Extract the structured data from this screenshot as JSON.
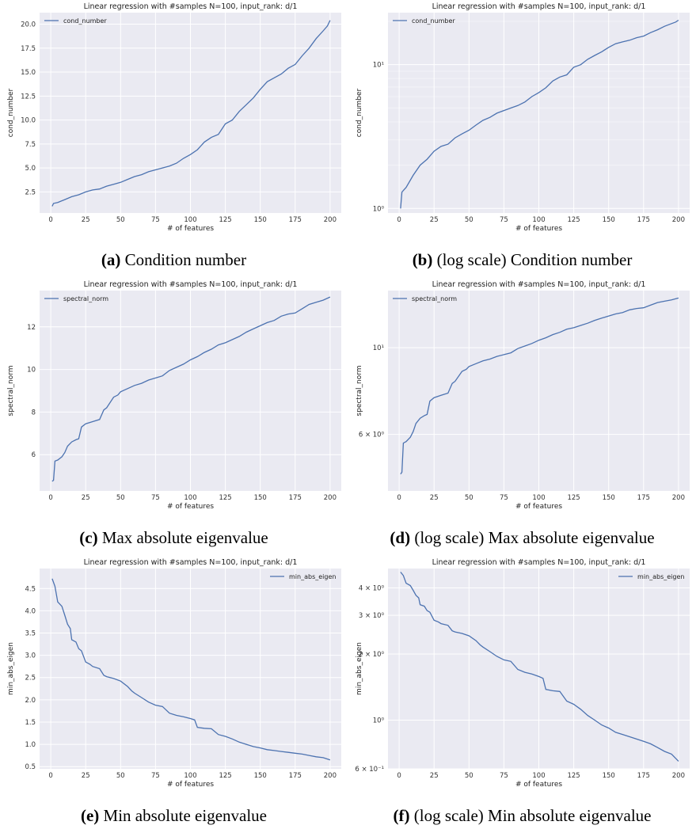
{
  "chart_data": [
    {
      "type": "line",
      "title": "Linear regression with #samples N=100, input_rank: d/1",
      "xlabel": "# of features",
      "ylabel": "cond_number",
      "scale": "linear",
      "xlim": [
        -8,
        208
      ],
      "ylim": [
        0.3,
        21.2
      ],
      "xticks": [
        "0",
        "25",
        "50",
        "75",
        "100",
        "125",
        "150",
        "175",
        "200"
      ],
      "yticks": [
        {
          "v": 2.5,
          "label": "2.5"
        },
        {
          "v": 5.0,
          "label": "5.0"
        },
        {
          "v": 7.5,
          "label": "7.5"
        },
        {
          "v": 10.0,
          "label": "10.0"
        },
        {
          "v": 12.5,
          "label": "12.5"
        },
        {
          "v": 15.0,
          "label": "15.0"
        },
        {
          "v": 17.5,
          "label": "17.5"
        },
        {
          "v": 20.0,
          "label": "20.0"
        }
      ],
      "legend": "top-left",
      "grid": true,
      "series": [
        {
          "name": "cond_number",
          "x": [
            1,
            2,
            5,
            10,
            15,
            20,
            25,
            30,
            35,
            40,
            45,
            50,
            55,
            60,
            65,
            70,
            75,
            80,
            85,
            90,
            95,
            100,
            105,
            110,
            115,
            120,
            125,
            130,
            135,
            140,
            145,
            150,
            155,
            160,
            165,
            170,
            175,
            180,
            185,
            190,
            195,
            198,
            200
          ],
          "y": [
            1.0,
            1.3,
            1.4,
            1.7,
            2.0,
            2.2,
            2.5,
            2.7,
            2.8,
            3.1,
            3.3,
            3.5,
            3.8,
            4.1,
            4.3,
            4.6,
            4.8,
            5.0,
            5.2,
            5.5,
            6.0,
            6.4,
            6.9,
            7.7,
            8.2,
            8.5,
            9.6,
            10.0,
            10.9,
            11.6,
            12.3,
            13.2,
            14.0,
            14.4,
            14.8,
            15.4,
            15.8,
            16.7,
            17.5,
            18.5,
            19.3,
            19.8,
            20.4
          ]
        }
      ],
      "caption_letter": "(a)",
      "caption_text": "Condition number"
    },
    {
      "type": "line",
      "title": "Linear regression with #samples N=100, input_rank: d/1",
      "xlabel": "# of features",
      "ylabel": "cond_number",
      "scale": "log",
      "xlim": [
        -8,
        208
      ],
      "ylim": [
        0.93,
        23
      ],
      "xticks": [
        "0",
        "25",
        "50",
        "75",
        "100",
        "125",
        "150",
        "175",
        "200"
      ],
      "yticks": [
        {
          "v": 1,
          "label": "10⁰"
        },
        {
          "v": 10,
          "label": "10¹"
        }
      ],
      "minor_yticks": [
        2,
        3,
        4,
        5,
        6,
        7,
        8,
        9,
        20
      ],
      "legend": "top-left",
      "grid": true,
      "series": [
        {
          "name": "cond_number",
          "x": [
            1,
            2,
            5,
            10,
            15,
            20,
            25,
            30,
            35,
            40,
            45,
            50,
            55,
            60,
            65,
            70,
            75,
            80,
            85,
            90,
            95,
            100,
            105,
            110,
            115,
            120,
            125,
            130,
            135,
            140,
            145,
            150,
            155,
            160,
            165,
            170,
            175,
            180,
            185,
            190,
            195,
            198,
            200
          ],
          "y": [
            1.0,
            1.3,
            1.4,
            1.7,
            2.0,
            2.2,
            2.5,
            2.7,
            2.8,
            3.1,
            3.3,
            3.5,
            3.8,
            4.1,
            4.3,
            4.6,
            4.8,
            5.0,
            5.2,
            5.5,
            6.0,
            6.4,
            6.9,
            7.7,
            8.2,
            8.5,
            9.6,
            10.0,
            10.9,
            11.6,
            12.3,
            13.2,
            14.0,
            14.4,
            14.8,
            15.4,
            15.8,
            16.7,
            17.5,
            18.5,
            19.3,
            19.8,
            20.4
          ]
        }
      ],
      "caption_letter": "(b)",
      "caption_text": "(log scale) Condition number"
    },
    {
      "type": "line",
      "title": "Linear regression with #samples N=100, input_rank: d/1",
      "xlabel": "# of features",
      "ylabel": "spectral_norm",
      "scale": "linear",
      "xlim": [
        -8,
        208
      ],
      "ylim": [
        4.3,
        13.7
      ],
      "xticks": [
        "0",
        "25",
        "50",
        "75",
        "100",
        "125",
        "150",
        "175",
        "200"
      ],
      "yticks": [
        {
          "v": 6,
          "label": "6"
        },
        {
          "v": 8,
          "label": "8"
        },
        {
          "v": 10,
          "label": "10"
        },
        {
          "v": 12,
          "label": "12"
        }
      ],
      "legend": "top-left",
      "grid": true,
      "series": [
        {
          "name": "spectral_norm",
          "x": [
            1,
            2,
            3,
            5,
            8,
            10,
            12,
            15,
            18,
            20,
            22,
            25,
            30,
            35,
            38,
            40,
            45,
            48,
            50,
            55,
            60,
            65,
            70,
            75,
            80,
            85,
            90,
            95,
            100,
            105,
            110,
            115,
            120,
            125,
            130,
            135,
            140,
            145,
            150,
            155,
            160,
            165,
            170,
            175,
            180,
            185,
            190,
            195,
            200
          ],
          "y": [
            4.75,
            4.8,
            5.7,
            5.75,
            5.9,
            6.1,
            6.4,
            6.6,
            6.7,
            6.75,
            7.3,
            7.45,
            7.55,
            7.65,
            8.1,
            8.2,
            8.7,
            8.8,
            8.95,
            9.1,
            9.25,
            9.35,
            9.5,
            9.6,
            9.7,
            9.95,
            10.1,
            10.25,
            10.45,
            10.6,
            10.8,
            10.95,
            11.15,
            11.25,
            11.4,
            11.55,
            11.75,
            11.9,
            12.05,
            12.2,
            12.3,
            12.5,
            12.6,
            12.65,
            12.85,
            13.05,
            13.15,
            13.25,
            13.4
          ]
        }
      ],
      "caption_letter": "(c)",
      "caption_text": "Max absolute eigenvalue"
    },
    {
      "type": "line",
      "title": "Linear regression with #samples N=100, input_rank: d/1",
      "xlabel": "# of features",
      "ylabel": "spectral_norm",
      "scale": "log",
      "xlim": [
        -8,
        208
      ],
      "ylim": [
        4.3,
        14.0
      ],
      "xticks": [
        "0",
        "25",
        "50",
        "75",
        "100",
        "125",
        "150",
        "175",
        "200"
      ],
      "yticks": [
        {
          "v": 6,
          "label": "6 × 10⁰"
        },
        {
          "v": 10,
          "label": "10¹"
        }
      ],
      "legend": "top-left",
      "grid": true,
      "series": [
        {
          "name": "spectral_norm",
          "x": [
            1,
            2,
            3,
            5,
            8,
            10,
            12,
            15,
            18,
            20,
            22,
            25,
            30,
            35,
            38,
            40,
            45,
            48,
            50,
            55,
            60,
            65,
            70,
            75,
            80,
            85,
            90,
            95,
            100,
            105,
            110,
            115,
            120,
            125,
            130,
            135,
            140,
            145,
            150,
            155,
            160,
            165,
            170,
            175,
            180,
            185,
            190,
            195,
            200
          ],
          "y": [
            4.75,
            4.8,
            5.7,
            5.75,
            5.9,
            6.1,
            6.4,
            6.6,
            6.7,
            6.75,
            7.3,
            7.45,
            7.55,
            7.65,
            8.1,
            8.2,
            8.7,
            8.8,
            8.95,
            9.1,
            9.25,
            9.35,
            9.5,
            9.6,
            9.7,
            9.95,
            10.1,
            10.25,
            10.45,
            10.6,
            10.8,
            10.95,
            11.15,
            11.25,
            11.4,
            11.55,
            11.75,
            11.9,
            12.05,
            12.2,
            12.3,
            12.5,
            12.6,
            12.65,
            12.85,
            13.05,
            13.15,
            13.25,
            13.4
          ]
        }
      ],
      "caption_letter": "(d)",
      "caption_text": "(log scale) Max absolute eigenvalue"
    },
    {
      "type": "line",
      "title": "Linear regression with #samples N=100, input_rank: d/1",
      "xlabel": "# of features",
      "ylabel": "min_abs_eigen",
      "scale": "linear",
      "xlim": [
        -8,
        208
      ],
      "ylim": [
        0.45,
        4.95
      ],
      "xticks": [
        "0",
        "25",
        "50",
        "75",
        "100",
        "125",
        "150",
        "175",
        "200"
      ],
      "yticks": [
        {
          "v": 0.5,
          "label": "0.5"
        },
        {
          "v": 1.0,
          "label": "1.0"
        },
        {
          "v": 1.5,
          "label": "1.5"
        },
        {
          "v": 2.0,
          "label": "2.0"
        },
        {
          "v": 2.5,
          "label": "2.5"
        },
        {
          "v": 3.0,
          "label": "3.0"
        },
        {
          "v": 3.5,
          "label": "3.5"
        },
        {
          "v": 4.0,
          "label": "4.0"
        },
        {
          "v": 4.5,
          "label": "4.5"
        }
      ],
      "legend": "top-right",
      "grid": true,
      "series": [
        {
          "name": "min_abs_eigen",
          "x": [
            1,
            3,
            5,
            8,
            10,
            12,
            14,
            15,
            18,
            20,
            22,
            25,
            28,
            30,
            35,
            38,
            40,
            45,
            50,
            55,
            58,
            60,
            65,
            70,
            75,
            80,
            85,
            90,
            95,
            100,
            103,
            105,
            110,
            115,
            120,
            125,
            130,
            135,
            140,
            145,
            150,
            155,
            160,
            165,
            170,
            175,
            180,
            185,
            190,
            195,
            200
          ],
          "y": [
            4.72,
            4.55,
            4.2,
            4.1,
            3.9,
            3.7,
            3.6,
            3.35,
            3.3,
            3.15,
            3.1,
            2.85,
            2.8,
            2.75,
            2.7,
            2.55,
            2.52,
            2.48,
            2.42,
            2.3,
            2.2,
            2.15,
            2.05,
            1.95,
            1.88,
            1.85,
            1.7,
            1.65,
            1.62,
            1.58,
            1.55,
            1.38,
            1.36,
            1.35,
            1.22,
            1.18,
            1.12,
            1.05,
            1.0,
            0.95,
            0.92,
            0.88,
            0.86,
            0.84,
            0.82,
            0.8,
            0.78,
            0.75,
            0.72,
            0.7,
            0.65
          ]
        }
      ],
      "caption_letter": "(e)",
      "caption_text": "Min absolute eigenvalue"
    },
    {
      "type": "line",
      "title": "Linear regression with #samples N=100, input_rank: d/1",
      "xlabel": "# of features",
      "ylabel": "min_abs_eigen",
      "scale": "log",
      "xlim": [
        -8,
        208
      ],
      "ylim": [
        0.6,
        4.9
      ],
      "xticks": [
        "0",
        "25",
        "50",
        "75",
        "100",
        "125",
        "150",
        "175",
        "200"
      ],
      "yticks": [
        {
          "v": 0.6,
          "label": "6 × 10⁻¹"
        },
        {
          "v": 1,
          "label": "10⁰"
        },
        {
          "v": 2,
          "label": "2 × 10⁰"
        },
        {
          "v": 3,
          "label": "3 × 10⁰"
        },
        {
          "v": 4,
          "label": "4 × 10⁰"
        }
      ],
      "legend": "top-right",
      "grid": true,
      "series": [
        {
          "name": "min_abs_eigen",
          "x": [
            1,
            3,
            5,
            8,
            10,
            12,
            14,
            15,
            18,
            20,
            22,
            25,
            28,
            30,
            35,
            38,
            40,
            45,
            50,
            55,
            58,
            60,
            65,
            70,
            75,
            80,
            85,
            90,
            95,
            100,
            103,
            105,
            110,
            115,
            120,
            125,
            130,
            135,
            140,
            145,
            150,
            155,
            160,
            165,
            170,
            175,
            180,
            185,
            190,
            195,
            200
          ],
          "y": [
            4.72,
            4.55,
            4.2,
            4.1,
            3.9,
            3.7,
            3.6,
            3.35,
            3.3,
            3.15,
            3.1,
            2.85,
            2.8,
            2.75,
            2.7,
            2.55,
            2.52,
            2.48,
            2.42,
            2.3,
            2.2,
            2.15,
            2.05,
            1.95,
            1.88,
            1.85,
            1.7,
            1.65,
            1.62,
            1.58,
            1.55,
            1.38,
            1.36,
            1.35,
            1.22,
            1.18,
            1.12,
            1.05,
            1.0,
            0.95,
            0.92,
            0.88,
            0.86,
            0.84,
            0.82,
            0.8,
            0.78,
            0.75,
            0.72,
            0.7,
            0.65
          ]
        }
      ],
      "caption_letter": "(f)",
      "caption_text": "(log scale) Min absolute eigenvalue"
    }
  ]
}
